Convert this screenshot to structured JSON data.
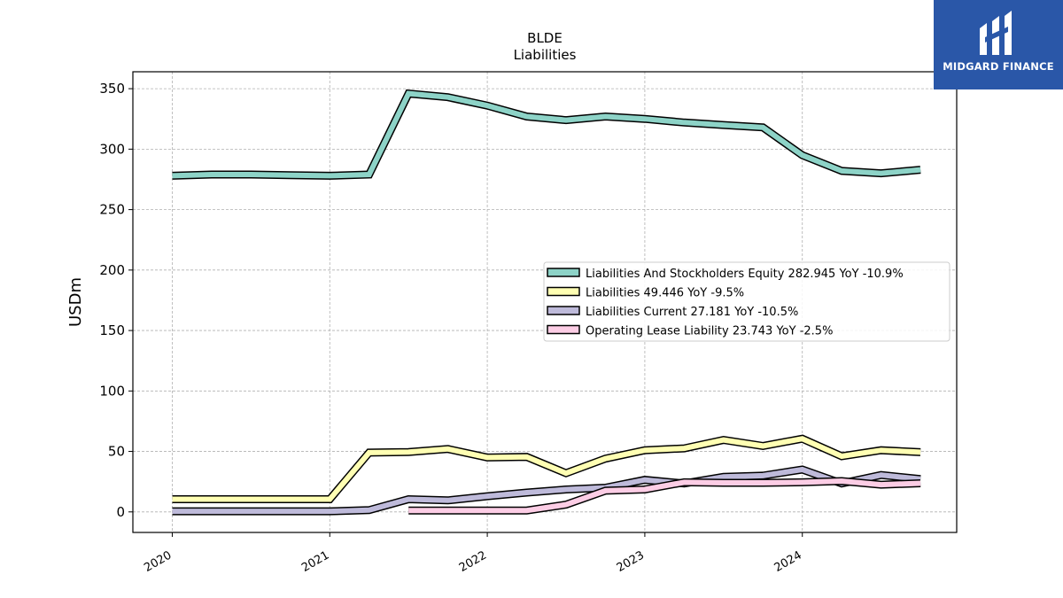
{
  "logo": {
    "text": "MIDGARD FINANCE",
    "bg_color": "#2a57a8"
  },
  "chart_data": {
    "type": "line",
    "title": "BLDE",
    "subtitle": "Liabilities",
    "xlabel": "",
    "ylabel": "USDm",
    "xlim": [
      2019.75,
      2024.98
    ],
    "ylim": [
      -17,
      364
    ],
    "x_ticks": [
      2020,
      2021,
      2022,
      2023,
      2024
    ],
    "x_tick_labels": [
      "2020",
      "2021",
      "2022",
      "2023",
      "2024"
    ],
    "y_ticks": [
      0,
      50,
      100,
      150,
      200,
      250,
      300,
      350
    ],
    "y_tick_labels": [
      "0",
      "50",
      "100",
      "150",
      "200",
      "250",
      "300",
      "350"
    ],
    "grid": true,
    "legend_position": "right-middle",
    "series": [
      {
        "name": "Liabilities And Stockholders Equity",
        "legend_label": "Liabilities And Stockholders Equity  282.945 YoY -10.9%",
        "color": "#8dd3c7",
        "points": [
          [
            2020.0,
            278
          ],
          [
            2020.25,
            279
          ],
          [
            2020.5,
            279
          ],
          [
            2020.75,
            278.5
          ],
          [
            2021.0,
            278
          ],
          [
            2021.25,
            279
          ],
          [
            2021.5,
            346
          ],
          [
            2021.75,
            343
          ],
          [
            2022.0,
            336
          ],
          [
            2022.25,
            327
          ],
          [
            2022.5,
            324
          ],
          [
            2022.75,
            327
          ],
          [
            2023.0,
            325
          ],
          [
            2023.25,
            322
          ],
          [
            2023.5,
            320
          ],
          [
            2023.75,
            318
          ],
          [
            2024.0,
            295
          ],
          [
            2024.25,
            282
          ],
          [
            2024.5,
            280
          ],
          [
            2024.75,
            283
          ]
        ]
      },
      {
        "name": "Liabilities",
        "legend_label": "Liabilities  49.446 YoY -9.5%",
        "color": "#ffffb3",
        "points": [
          [
            2020.0,
            10.5
          ],
          [
            2020.25,
            10.5
          ],
          [
            2020.5,
            10.5
          ],
          [
            2020.75,
            10.5
          ],
          [
            2021.0,
            10.5
          ],
          [
            2021.25,
            49
          ],
          [
            2021.5,
            49.5
          ],
          [
            2021.75,
            52
          ],
          [
            2022.0,
            45
          ],
          [
            2022.25,
            45.5
          ],
          [
            2022.5,
            32
          ],
          [
            2022.75,
            44
          ],
          [
            2023.0,
            51
          ],
          [
            2023.25,
            52.5
          ],
          [
            2023.5,
            59.5
          ],
          [
            2023.75,
            54.5
          ],
          [
            2024.0,
            60.5
          ],
          [
            2024.25,
            46
          ],
          [
            2024.5,
            51
          ],
          [
            2024.75,
            49.4
          ]
        ]
      },
      {
        "name": "Liabilities Current",
        "legend_label": "Liabilities Current  27.181 YoY -10.5%",
        "color": "#bebada",
        "points": [
          [
            2020.0,
            0.5
          ],
          [
            2020.25,
            0.5
          ],
          [
            2020.5,
            0.5
          ],
          [
            2020.75,
            0.5
          ],
          [
            2021.0,
            0.5
          ],
          [
            2021.25,
            1.5
          ],
          [
            2021.5,
            10.5
          ],
          [
            2021.75,
            9.5
          ],
          [
            2022.0,
            13
          ],
          [
            2022.25,
            16
          ],
          [
            2022.5,
            18.5
          ],
          [
            2022.75,
            20
          ],
          [
            2023.0,
            26.5
          ],
          [
            2023.25,
            23.5
          ],
          [
            2023.5,
            29
          ],
          [
            2023.75,
            30
          ],
          [
            2024.0,
            35
          ],
          [
            2024.25,
            23.5
          ],
          [
            2024.5,
            30.5
          ],
          [
            2024.75,
            27.2
          ]
        ]
      },
      {
        "name": "Operating Lease Liability",
        "legend_label": "Operating Lease Liability  23.743 YoY -2.5%",
        "color": "#fccde5",
        "points": [
          [
            2021.5,
            1.2
          ],
          [
            2021.75,
            1.2
          ],
          [
            2022.0,
            1.2
          ],
          [
            2022.25,
            1.2
          ],
          [
            2022.5,
            6
          ],
          [
            2022.75,
            17.5
          ],
          [
            2023.0,
            18.5
          ],
          [
            2023.25,
            24.5
          ],
          [
            2023.5,
            24
          ],
          [
            2023.75,
            24
          ],
          [
            2024.0,
            24.5
          ],
          [
            2024.25,
            25.5
          ],
          [
            2024.5,
            22.5
          ],
          [
            2024.75,
            23.7
          ]
        ]
      }
    ]
  }
}
